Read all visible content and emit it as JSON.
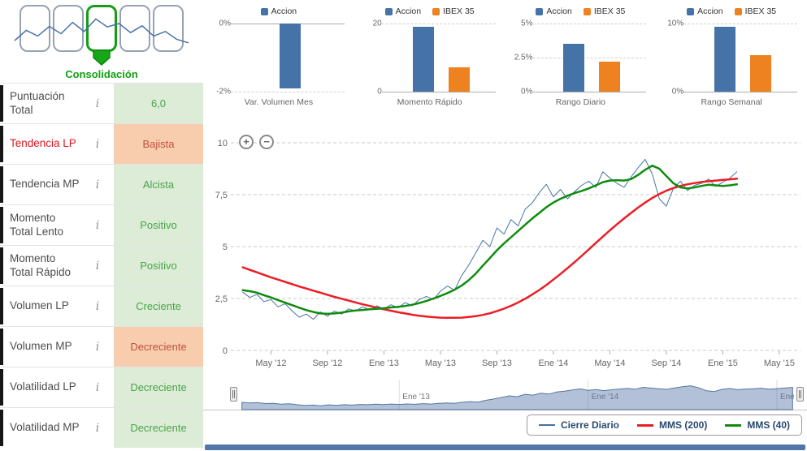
{
  "colors": {
    "accion": "#4572a7",
    "ibex35": "#ee8221",
    "mms200": "#ec1d24",
    "mms40": "#0e8c0e",
    "positive_bg": "#dcecd7",
    "positive_text": "#4aa348",
    "negative_bg": "#f8cdae",
    "negative_text": "#c05040",
    "consolidation_green": "#11a111"
  },
  "gauge": {
    "label": "Consolidación",
    "spark": [
      4.0,
      5.8,
      4.8,
      6.5,
      5.2,
      7.2,
      5.6,
      7.8,
      6.4,
      7.0,
      5.4,
      6.6,
      4.8,
      5.6,
      4.2,
      3.6
    ]
  },
  "zoom": {
    "in_label": "+",
    "out_label": "−"
  },
  "sidebar": {
    "info_icon": "i",
    "rows": [
      {
        "label": "Puntuación Total",
        "value": "6,0",
        "state": "positive"
      },
      {
        "label": "Tendencia LP",
        "value": "Bajista",
        "state": "negative",
        "alert": true
      },
      {
        "label": "Tendencia MP",
        "value": "Alcista",
        "state": "positive"
      },
      {
        "label": "Momento Total Lento",
        "value": "Positivo",
        "state": "positive"
      },
      {
        "label": "Momento Total Rápido",
        "value": "Positivo",
        "state": "positive"
      },
      {
        "label": "Volumen LP",
        "value": "Creciente",
        "state": "positive"
      },
      {
        "label": "Volumen MP",
        "value": "Decreciente",
        "state": "negative"
      },
      {
        "label": "Volatilidad LP",
        "value": "Decreciente",
        "state": "positive"
      },
      {
        "label": "Volatilidad MP",
        "value": "Decreciente",
        "state": "positive"
      }
    ]
  },
  "chart_data": [
    {
      "type": "bar",
      "title": "Var. Volumen Mes",
      "ylim": [
        -2,
        0
      ],
      "yticks": [
        {
          "v": 0,
          "label": "0%"
        },
        {
          "v": -2,
          "label": "-2%"
        }
      ],
      "series": [
        {
          "name": "Accion",
          "color": "#4572a7",
          "values": [
            -1.9
          ]
        }
      ]
    },
    {
      "type": "bar",
      "title": "Momento Rápido",
      "ylim": [
        0,
        20
      ],
      "yticks": [
        {
          "v": 20,
          "label": "20"
        },
        {
          "v": 0,
          "label": "0"
        }
      ],
      "series": [
        {
          "name": "Accion",
          "color": "#4572a7",
          "values": [
            19
          ]
        },
        {
          "name": "IBEX 35",
          "color": "#ee8221",
          "values": [
            7.2
          ]
        }
      ]
    },
    {
      "type": "bar",
      "title": "Rango Diario",
      "ylim": [
        0,
        5
      ],
      "yticks": [
        {
          "v": 5,
          "label": "5%"
        },
        {
          "v": 2.5,
          "label": "2.5%"
        },
        {
          "v": 0,
          "label": "0%"
        }
      ],
      "series": [
        {
          "name": "Accion",
          "color": "#4572a7",
          "values": [
            3.5
          ]
        },
        {
          "name": "IBEX 35",
          "color": "#ee8221",
          "values": [
            2.2
          ]
        }
      ]
    },
    {
      "type": "bar",
      "title": "Rango Semanal",
      "ylim": [
        0,
        10
      ],
      "yticks": [
        {
          "v": 10,
          "label": "10%"
        },
        {
          "v": 0,
          "label": "0%"
        }
      ],
      "series": [
        {
          "name": "Accion",
          "color": "#4572a7",
          "values": [
            9.5
          ]
        },
        {
          "name": "IBEX 35",
          "color": "#ee8221",
          "values": [
            5.3
          ]
        }
      ]
    },
    {
      "type": "line",
      "title": "",
      "xlim": [
        0,
        40
      ],
      "ylim": [
        0,
        10
      ],
      "x_start": 0.5,
      "x_step": 0.5,
      "yticks": [
        {
          "v": 10,
          "label": "10"
        },
        {
          "v": 7.5,
          "label": "7,5"
        },
        {
          "v": 5,
          "label": "5"
        },
        {
          "v": 2.5,
          "label": "2,5"
        },
        {
          "v": 0,
          "label": "0"
        }
      ],
      "xticks": [
        {
          "x": 2.5,
          "label": "May '12"
        },
        {
          "x": 6.5,
          "label": "Sep '12"
        },
        {
          "x": 10.5,
          "label": "Ene '13"
        },
        {
          "x": 14.5,
          "label": "May '13"
        },
        {
          "x": 18.5,
          "label": "Sep '13"
        },
        {
          "x": 22.5,
          "label": "Ene '14"
        },
        {
          "x": 26.5,
          "label": "May '14"
        },
        {
          "x": 30.5,
          "label": "Sep '14"
        },
        {
          "x": 34.5,
          "label": "Ene '15"
        },
        {
          "x": 38.5,
          "label": "May '15"
        }
      ],
      "series": [
        {
          "name": "Cierre Diario",
          "color": "#4572a7",
          "width": 1,
          "values": [
            2.8,
            2.55,
            2.7,
            2.35,
            2.45,
            2.1,
            2.25,
            1.9,
            1.6,
            1.75,
            1.5,
            1.85,
            1.65,
            1.9,
            1.75,
            2.0,
            1.9,
            2.1,
            1.95,
            2.15,
            2.0,
            2.2,
            2.05,
            2.3,
            2.15,
            2.45,
            2.6,
            2.45,
            2.85,
            3.1,
            2.9,
            3.6,
            4.1,
            4.7,
            5.3,
            5.0,
            5.9,
            5.6,
            6.3,
            6.0,
            6.8,
            7.1,
            7.6,
            8.0,
            7.4,
            7.75,
            7.3,
            7.65,
            7.95,
            8.15,
            7.85,
            8.6,
            8.3,
            8.05,
            7.85,
            8.35,
            8.8,
            9.2,
            8.5,
            7.3,
            6.95,
            7.8,
            8.15,
            7.7,
            7.95,
            8.05,
            8.25,
            7.9,
            8.1,
            8.3,
            8.6
          ]
        },
        {
          "name": "MMS (200)",
          "color": "#ec1d24",
          "width": 2.5,
          "values": [
            4.0,
            3.88,
            3.76,
            3.64,
            3.52,
            3.41,
            3.3,
            3.19,
            3.08,
            2.98,
            2.88,
            2.78,
            2.68,
            2.58,
            2.49,
            2.4,
            2.31,
            2.22,
            2.14,
            2.06,
            1.98,
            1.91,
            1.84,
            1.78,
            1.72,
            1.67,
            1.63,
            1.6,
            1.58,
            1.57,
            1.57,
            1.58,
            1.61,
            1.65,
            1.71,
            1.79,
            1.89,
            2.01,
            2.15,
            2.31,
            2.49,
            2.69,
            2.91,
            3.15,
            3.41,
            3.68,
            3.96,
            4.25,
            4.55,
            4.86,
            5.17,
            5.48,
            5.78,
            6.07,
            6.35,
            6.62,
            6.88,
            7.12,
            7.34,
            7.53,
            7.69,
            7.82,
            7.92,
            8.0,
            8.06,
            8.11,
            8.15,
            8.18,
            8.21,
            8.24,
            8.27
          ]
        },
        {
          "name": "MMS (40)",
          "color": "#0e8c0e",
          "width": 2.5,
          "values": [
            2.9,
            2.85,
            2.78,
            2.66,
            2.55,
            2.42,
            2.3,
            2.18,
            2.06,
            1.94,
            1.85,
            1.78,
            1.76,
            1.78,
            1.82,
            1.88,
            1.92,
            1.95,
            1.98,
            2.0,
            2.03,
            2.07,
            2.1,
            2.14,
            2.2,
            2.28,
            2.38,
            2.5,
            2.62,
            2.76,
            2.92,
            3.12,
            3.38,
            3.7,
            4.08,
            4.45,
            4.82,
            5.15,
            5.45,
            5.75,
            6.05,
            6.35,
            6.62,
            6.9,
            7.12,
            7.3,
            7.45,
            7.58,
            7.68,
            7.8,
            7.95,
            8.1,
            8.18,
            8.2,
            8.18,
            8.25,
            8.45,
            8.7,
            8.9,
            8.75,
            8.4,
            8.05,
            7.85,
            7.8,
            7.85,
            7.92,
            7.98,
            7.95,
            7.92,
            7.95,
            8.0
          ]
        }
      ]
    },
    {
      "type": "area",
      "name": "navigator",
      "xlim": [
        0,
        36
      ],
      "xticks": [
        {
          "x": 10.5,
          "label": "Ene '13"
        },
        {
          "x": 22.5,
          "label": "Ene '14"
        },
        {
          "x": 34.5,
          "label": "Ene"
        }
      ]
    }
  ],
  "legend": {
    "items": [
      {
        "label": "Cierre Diario",
        "color": "#4572a7",
        "thick": 2
      },
      {
        "label": "MMS (200)",
        "color": "#ec1d24",
        "thick": 3
      },
      {
        "label": "MMS (40)",
        "color": "#0e8c0e",
        "thick": 3
      }
    ]
  }
}
